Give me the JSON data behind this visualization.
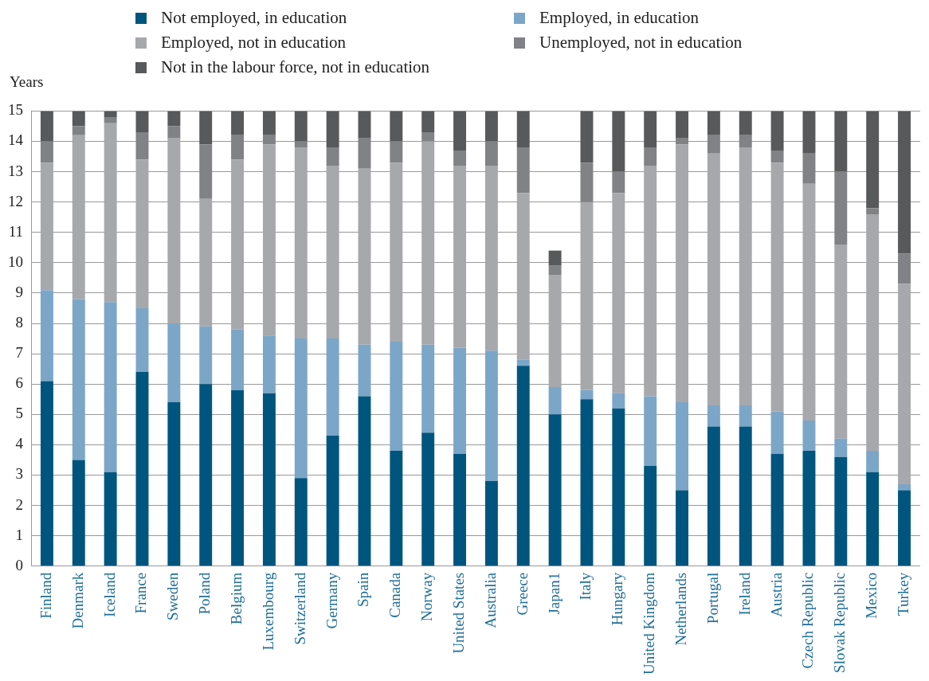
{
  "chart_data": {
    "type": "bar",
    "stacked": true,
    "ylabel": "Years",
    "legend": "top",
    "grid": "y",
    "categories": [
      "Finland",
      "Denmark",
      "Iceland",
      "France",
      "Sweden",
      "Poland",
      "Belgium",
      "Luxembourg",
      "Switzerland",
      "Germany",
      "Spain",
      "Canada",
      "Norway",
      "United States",
      "Australia",
      "Greece",
      "Japan1",
      "Italy",
      "Hungary",
      "United Kingdom",
      "Netherlands",
      "Portugal",
      "Ireland",
      "Austria",
      "Czech Republic",
      "Slovak Republic",
      "Mexico",
      "Turkey"
    ],
    "ylim": [
      0,
      15
    ],
    "yticks": [
      0,
      1,
      2,
      3,
      4,
      5,
      6,
      7,
      8,
      9,
      10,
      11,
      12,
      13,
      14,
      15
    ],
    "series": [
      {
        "name": "Not employed, in education",
        "color": "#00557f",
        "values": [
          6.1,
          3.5,
          3.1,
          6.4,
          5.4,
          6.0,
          5.8,
          5.7,
          2.9,
          4.3,
          5.6,
          3.8,
          4.4,
          3.7,
          2.8,
          6.6,
          5.0,
          5.5,
          5.2,
          3.3,
          2.5,
          4.6,
          4.6,
          3.7,
          3.8,
          3.6,
          3.1,
          2.5
        ]
      },
      {
        "name": "Employed, in education",
        "color": "#7ba6c8",
        "values": [
          3.0,
          5.3,
          5.6,
          2.1,
          2.6,
          1.9,
          2.0,
          1.9,
          4.6,
          3.2,
          1.7,
          3.6,
          2.9,
          3.5,
          4.3,
          0.2,
          0.9,
          0.3,
          0.5,
          2.3,
          2.9,
          0.7,
          0.7,
          1.4,
          1.0,
          0.6,
          0.7,
          0.2
        ]
      },
      {
        "name": "Employed, not in education",
        "color": "#a7a8ac",
        "values": [
          4.2,
          5.4,
          5.9,
          4.9,
          6.1,
          4.2,
          5.6,
          6.3,
          6.3,
          5.7,
          5.8,
          5.9,
          6.7,
          6.0,
          6.1,
          5.5,
          3.7,
          6.2,
          6.6,
          7.6,
          8.5,
          8.3,
          8.5,
          8.2,
          7.8,
          6.4,
          7.8,
          6.6
        ]
      },
      {
        "name": "Unemployed, not in education",
        "color": "#808285",
        "values": [
          0.7,
          0.3,
          0.2,
          0.9,
          0.4,
          1.8,
          0.8,
          0.3,
          0.2,
          0.6,
          1.0,
          0.7,
          0.3,
          0.5,
          0.8,
          1.5,
          0.3,
          1.3,
          0.7,
          0.6,
          0.2,
          0.6,
          0.4,
          0.4,
          1.0,
          2.4,
          0.2,
          1.0
        ]
      },
      {
        "name": "Not in the labour force, not in education",
        "color": "#58595b",
        "values": [
          1.0,
          0.5,
          0.2,
          0.7,
          0.5,
          1.1,
          0.8,
          0.8,
          1.0,
          1.2,
          0.9,
          1.0,
          0.7,
          1.3,
          1.0,
          1.2,
          0.5,
          1.7,
          2.0,
          1.2,
          0.9,
          0.8,
          0.8,
          1.3,
          1.4,
          2.0,
          3.2,
          4.7
        ]
      }
    ]
  }
}
